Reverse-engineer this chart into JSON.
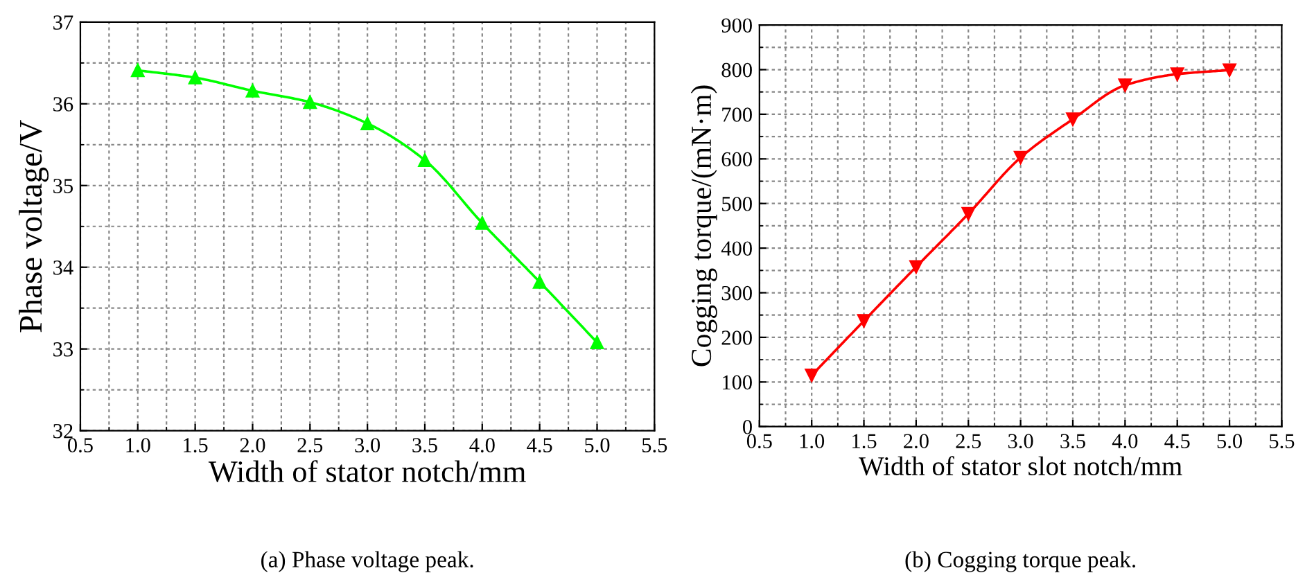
{
  "chart_data": [
    {
      "type": "line",
      "xlabel": "Width of stator notch/mm",
      "ylabel": "Phase voltage/V",
      "annotations": [
        "(a) Phase voltage peak."
      ],
      "x": [
        1.0,
        1.5,
        2.0,
        2.5,
        3.0,
        3.5,
        4.0,
        4.5,
        5.0
      ],
      "series": [
        {
          "color": "#00ff00",
          "values": [
            36.41,
            36.32,
            36.16,
            36.02,
            35.76,
            35.31,
            34.54,
            33.82,
            33.08
          ]
        }
      ],
      "marker": "triangle",
      "line_style": "solid",
      "grid": true,
      "xlim": [
        0.5,
        5.5
      ],
      "xticks": [
        {
          "value": 0.5,
          "label": "0.5"
        },
        {
          "value": 1,
          "label": "1.0"
        },
        {
          "value": 1.5,
          "label": "1.5"
        },
        {
          "value": 2,
          "label": "2.0"
        },
        {
          "value": 2.5,
          "label": "2.5"
        },
        {
          "value": 3,
          "label": "3.0"
        },
        {
          "value": 3.5,
          "label": "3.5"
        },
        {
          "value": 4,
          "label": "4.0"
        },
        {
          "value": 4.5,
          "label": "4.5"
        },
        {
          "value": 5,
          "label": "5.0"
        },
        {
          "value": 5.5,
          "label": "5.5"
        }
      ],
      "ylim": [
        32,
        37
      ],
      "yticks": [
        32,
        33,
        34,
        35,
        36,
        37
      ]
    },
    {
      "type": "line",
      "xlabel": "Width of stator slot notch/mm",
      "ylabel": "Cogging torque/(mN·m)",
      "annotations": [
        "(b) Cogging torque peak."
      ],
      "x": [
        1.0,
        1.5,
        2.0,
        2.5,
        3.0,
        3.5,
        4.0,
        4.5,
        5.0
      ],
      "series": [
        {
          "color": "#ff0000",
          "values": [
            115,
            237,
            358,
            477,
            603,
            689,
            765,
            790,
            799
          ]
        }
      ],
      "marker": "triangle_down",
      "line_style": "solid",
      "grid": true,
      "xlim": [
        0.5,
        5.5
      ],
      "xticks": [
        {
          "value": 0.5,
          "label": "0.5"
        },
        {
          "value": 1,
          "label": "1.0"
        },
        {
          "value": 1.5,
          "label": "1.5"
        },
        {
          "value": 2,
          "label": "2.0"
        },
        {
          "value": 2.5,
          "label": "2.5"
        },
        {
          "value": 3,
          "label": "3.0"
        },
        {
          "value": 3.5,
          "label": "3.5"
        },
        {
          "value": 4,
          "label": "4.0"
        },
        {
          "value": 4.5,
          "label": "4.5"
        },
        {
          "value": 5,
          "label": "5.0"
        },
        {
          "value": 5.5,
          "label": "5.5"
        }
      ],
      "ylim": [
        0,
        900
      ],
      "yticks": [
        0,
        100,
        200,
        300,
        400,
        500,
        600,
        700,
        800,
        900
      ]
    }
  ]
}
